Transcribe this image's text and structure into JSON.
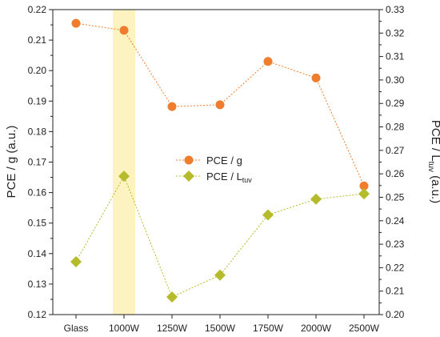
{
  "chart_data": {
    "type": "line",
    "categories": [
      "Glass",
      "1000W",
      "1250W",
      "1500W",
      "1750W",
      "2000W",
      "2500W"
    ],
    "highlight_category": "1000W",
    "highlight_color": "#fdf3c0",
    "y_left": {
      "label_main": "PCE / g",
      "label_unit": " (a.u.)",
      "ylim": [
        0.12,
        0.22
      ],
      "ticks": [
        "0.12",
        "0.13",
        "0.14",
        "0.15",
        "0.16",
        "0.17",
        "0.18",
        "0.19",
        "0.20",
        "0.21",
        "0.22"
      ]
    },
    "y_right": {
      "label_main": "PCE / L",
      "label_sub": "tuv",
      "label_unit": " (a.u.)",
      "ylim": [
        0.2,
        0.33
      ],
      "ticks": [
        "0.20",
        "0.21",
        "0.22",
        "0.23",
        "0.24",
        "0.25",
        "0.26",
        "0.27",
        "0.28",
        "0.29",
        "0.30",
        "0.31",
        "0.32",
        "0.33"
      ]
    },
    "series": [
      {
        "name": "PCE / g",
        "axis": "left",
        "marker": "circle",
        "color": "#ef7d2d",
        "values": [
          0.2155,
          0.2132,
          0.1882,
          0.1888,
          0.203,
          0.1976,
          0.1622
        ]
      },
      {
        "name_main": "PCE / L",
        "name_sub": "tuv",
        "axis": "right",
        "marker": "diamond",
        "color": "#b5bb2a",
        "values": [
          0.2225,
          0.259,
          0.2075,
          0.2168,
          0.2425,
          0.2492,
          0.2515
        ]
      }
    ],
    "legend_position": "center"
  }
}
